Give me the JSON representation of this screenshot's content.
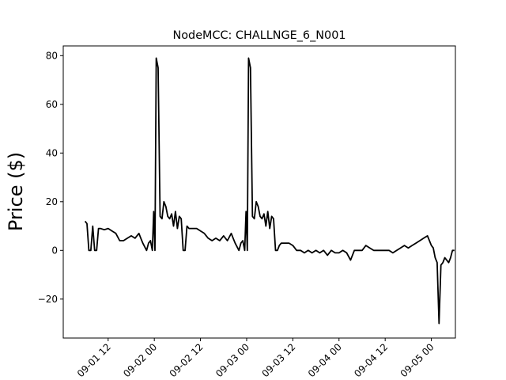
{
  "chart_data": {
    "type": "line",
    "title": "NodeMCC: CHALLNGE_6_N001",
    "xlabel": "",
    "ylabel": "Price ($)",
    "grid": false,
    "line_color": "#000000",
    "xlim": [
      "2024-09-01 00:20",
      "2024-09-05 06:15"
    ],
    "ylim": [
      -36,
      84
    ],
    "x_ticks": [
      {
        "x": "2024-09-01 12:00",
        "label": "09-01 12"
      },
      {
        "x": "2024-09-02 00:00",
        "label": "09-02 00"
      },
      {
        "x": "2024-09-02 12:00",
        "label": "09-02 12"
      },
      {
        "x": "2024-09-03 00:00",
        "label": "09-03 00"
      },
      {
        "x": "2024-09-03 12:00",
        "label": "09-03 12"
      },
      {
        "x": "2024-09-04 00:00",
        "label": "09-04 00"
      },
      {
        "x": "2024-09-04 12:00",
        "label": "09-04 12"
      },
      {
        "x": "2024-09-05 00:00",
        "label": "09-05 00"
      }
    ],
    "y_ticks": [
      {
        "value": -20,
        "label": "−20"
      },
      {
        "value": 0,
        "label": "0"
      },
      {
        "value": 20,
        "label": "20"
      },
      {
        "value": 40,
        "label": "40"
      },
      {
        "value": 60,
        "label": "60"
      },
      {
        "value": 80,
        "label": "80"
      }
    ],
    "series": [
      {
        "x": [
          "2024-09-01 06:00",
          "2024-09-01 06:30",
          "2024-09-01 07:00",
          "2024-09-01 07:30",
          "2024-09-01 08:00",
          "2024-09-01 08:30",
          "2024-09-01 09:00",
          "2024-09-01 09:30",
          "2024-09-01 10:00",
          "2024-09-01 11:00",
          "2024-09-01 12:00",
          "2024-09-01 13:00",
          "2024-09-01 14:00",
          "2024-09-01 15:00",
          "2024-09-01 16:00",
          "2024-09-01 17:00",
          "2024-09-01 18:00",
          "2024-09-01 19:00",
          "2024-09-01 20:00",
          "2024-09-01 20:30",
          "2024-09-01 21:00",
          "2024-09-01 22:00",
          "2024-09-01 22:30",
          "2024-09-01 23:00",
          "2024-09-01 23:30",
          "2024-09-01 23:50",
          "2024-09-02 00:10",
          "2024-09-02 00:30",
          "2024-09-02 01:00",
          "2024-09-02 01:30",
          "2024-09-02 02:00",
          "2024-09-02 02:30",
          "2024-09-02 03:00",
          "2024-09-02 03:30",
          "2024-09-02 04:00",
          "2024-09-02 04:30",
          "2024-09-02 05:00",
          "2024-09-02 05:30",
          "2024-09-02 06:00",
          "2024-09-02 06:30",
          "2024-09-02 07:00",
          "2024-09-02 07:30",
          "2024-09-02 08:00",
          "2024-09-02 08:30",
          "2024-09-02 09:00",
          "2024-09-02 10:00",
          "2024-09-02 11:00",
          "2024-09-02 12:00",
          "2024-09-02 13:00",
          "2024-09-02 14:00",
          "2024-09-02 15:00",
          "2024-09-02 16:00",
          "2024-09-02 17:00",
          "2024-09-02 18:00",
          "2024-09-02 19:00",
          "2024-09-02 20:00",
          "2024-09-02 20:30",
          "2024-09-02 21:00",
          "2024-09-02 22:00",
          "2024-09-02 22:30",
          "2024-09-02 23:00",
          "2024-09-02 23:30",
          "2024-09-02 23:50",
          "2024-09-03 00:10",
          "2024-09-03 00:30",
          "2024-09-03 01:00",
          "2024-09-03 01:30",
          "2024-09-03 02:00",
          "2024-09-03 02:30",
          "2024-09-03 03:00",
          "2024-09-03 03:30",
          "2024-09-03 04:00",
          "2024-09-03 04:30",
          "2024-09-03 05:00",
          "2024-09-03 05:30",
          "2024-09-03 06:00",
          "2024-09-03 06:30",
          "2024-09-03 07:00",
          "2024-09-03 07:30",
          "2024-09-03 08:00",
          "2024-09-03 08:30",
          "2024-09-03 09:00",
          "2024-09-03 10:00",
          "2024-09-03 11:00",
          "2024-09-03 12:00",
          "2024-09-03 13:00",
          "2024-09-03 14:00",
          "2024-09-03 15:00",
          "2024-09-03 16:00",
          "2024-09-03 17:00",
          "2024-09-03 18:00",
          "2024-09-03 19:00",
          "2024-09-03 20:00",
          "2024-09-03 21:00",
          "2024-09-03 22:00",
          "2024-09-03 23:00",
          "2024-09-04 00:00",
          "2024-09-04 01:00",
          "2024-09-04 02:00",
          "2024-09-04 03:00",
          "2024-09-04 04:00",
          "2024-09-04 05:00",
          "2024-09-04 06:00",
          "2024-09-04 07:00",
          "2024-09-04 08:00",
          "2024-09-04 09:00",
          "2024-09-04 10:00",
          "2024-09-04 11:00",
          "2024-09-04 12:00",
          "2024-09-04 13:00",
          "2024-09-04 14:00",
          "2024-09-04 15:00",
          "2024-09-04 16:00",
          "2024-09-04 17:00",
          "2024-09-04 18:00",
          "2024-09-04 19:00",
          "2024-09-04 20:00",
          "2024-09-04 21:00",
          "2024-09-04 22:00",
          "2024-09-04 23:00",
          "2024-09-05 00:00",
          "2024-09-05 00:30",
          "2024-09-05 01:00",
          "2024-09-05 01:30",
          "2024-09-05 02:00",
          "2024-09-05 02:30",
          "2024-09-05 03:00",
          "2024-09-05 03:30",
          "2024-09-05 04:00",
          "2024-09-05 04:30",
          "2024-09-05 05:00",
          "2024-09-05 05:30",
          "2024-09-05 06:00"
        ],
        "y": [
          12,
          11,
          0,
          0,
          10,
          0,
          0,
          9,
          9,
          8.5,
          9,
          8,
          7,
          4,
          4,
          5,
          6,
          5,
          7,
          5,
          3,
          0,
          3,
          4,
          0,
          16,
          0,
          79,
          75,
          14,
          13,
          20,
          18,
          14,
          13,
          15,
          10,
          16,
          9,
          14,
          13,
          0,
          0,
          10,
          9,
          9,
          9,
          8,
          7,
          5,
          4,
          5,
          4,
          6,
          4,
          7,
          5,
          3,
          0,
          3,
          4,
          0,
          16,
          0,
          79,
          75,
          14,
          13,
          20,
          18,
          14,
          13,
          15,
          10,
          16,
          9,
          14,
          13,
          0,
          0,
          2,
          3,
          3,
          3,
          2,
          0,
          0,
          -1,
          0,
          -1,
          0,
          -1,
          0,
          -2,
          0,
          -1,
          -1,
          0,
          -1,
          -4,
          0,
          0,
          0,
          2,
          1,
          0,
          0,
          0,
          0,
          0,
          -1,
          0,
          1,
          2,
          1,
          2,
          3,
          4,
          5,
          6,
          2,
          1,
          -3,
          -5,
          -30,
          -6,
          -5,
          -3,
          -4,
          -5,
          -3,
          0,
          0
        ]
      }
    ]
  }
}
